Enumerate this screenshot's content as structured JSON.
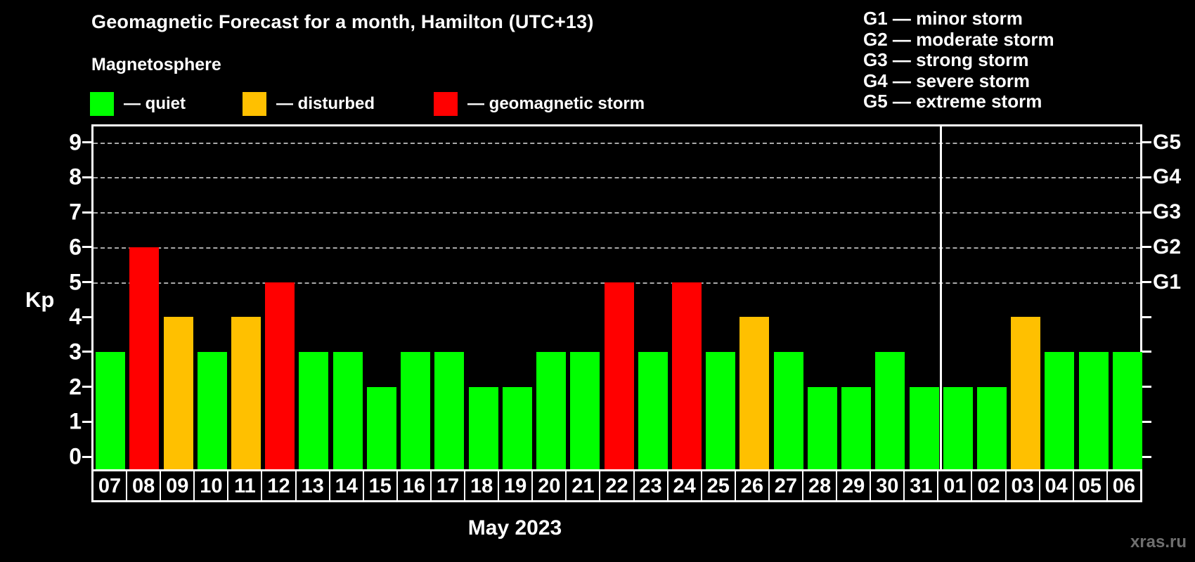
{
  "title": "Geomagnetic Forecast for a month, Hamilton (UTC+13)",
  "subtitle": "Magnetosphere",
  "legend": {
    "items": [
      {
        "name": "quiet",
        "label": "— quiet",
        "color": "#00ff00"
      },
      {
        "name": "disturbed",
        "label": "— disturbed",
        "color": "#ffc000"
      },
      {
        "name": "storm",
        "label": "— geomagnetic storm",
        "color": "#ff0000"
      }
    ]
  },
  "g_legend": {
    "lines": [
      "G1 — minor storm",
      "G2 — moderate storm",
      "G3 — strong storm",
      "G4 — severe storm",
      "G5 — extreme storm"
    ]
  },
  "axis": {
    "y_label": "Kp"
  },
  "footer": {
    "month_label": "May 2023",
    "watermark": "xras.ru"
  },
  "chart_data": {
    "type": "bar",
    "title": "Geomagnetic Forecast for a month, Hamilton (UTC+13)",
    "xlabel": "May 2023",
    "ylabel": "Kp",
    "ylim": [
      0,
      9
    ],
    "y_ticks": [
      0,
      1,
      2,
      3,
      4,
      5,
      6,
      7,
      8,
      9
    ],
    "gridlines_kp": [
      5,
      6,
      7,
      8,
      9
    ],
    "right_axis_labels": [
      {
        "label": "G1",
        "kp": 5
      },
      {
        "label": "G2",
        "kp": 6
      },
      {
        "label": "G3",
        "kp": 7
      },
      {
        "label": "G4",
        "kp": 8
      },
      {
        "label": "G5",
        "kp": 9
      }
    ],
    "categories": [
      "07",
      "08",
      "09",
      "10",
      "11",
      "12",
      "13",
      "14",
      "15",
      "16",
      "17",
      "18",
      "19",
      "20",
      "21",
      "22",
      "23",
      "24",
      "25",
      "26",
      "27",
      "28",
      "29",
      "30",
      "31",
      "01",
      "02",
      "03",
      "04",
      "05",
      "06"
    ],
    "values": [
      3,
      6,
      4,
      3,
      4,
      5,
      3,
      3,
      2,
      3,
      3,
      2,
      2,
      3,
      3,
      5,
      3,
      5,
      3,
      4,
      3,
      2,
      2,
      3,
      2,
      2,
      2,
      4,
      3,
      3,
      3
    ],
    "statuses": [
      "quiet",
      "storm",
      "disturbed",
      "quiet",
      "disturbed",
      "storm",
      "quiet",
      "quiet",
      "quiet",
      "quiet",
      "quiet",
      "quiet",
      "quiet",
      "quiet",
      "quiet",
      "storm",
      "quiet",
      "storm",
      "quiet",
      "disturbed",
      "quiet",
      "quiet",
      "quiet",
      "quiet",
      "quiet",
      "quiet",
      "quiet",
      "disturbed",
      "quiet",
      "quiet",
      "quiet"
    ],
    "status_colors": {
      "quiet": "#00ff00",
      "disturbed": "#ffc000",
      "storm": "#ff0000"
    },
    "month_separator_after_index": 24,
    "legend_position": "top-left",
    "grid": "dashed horizontal at storm levels only"
  }
}
